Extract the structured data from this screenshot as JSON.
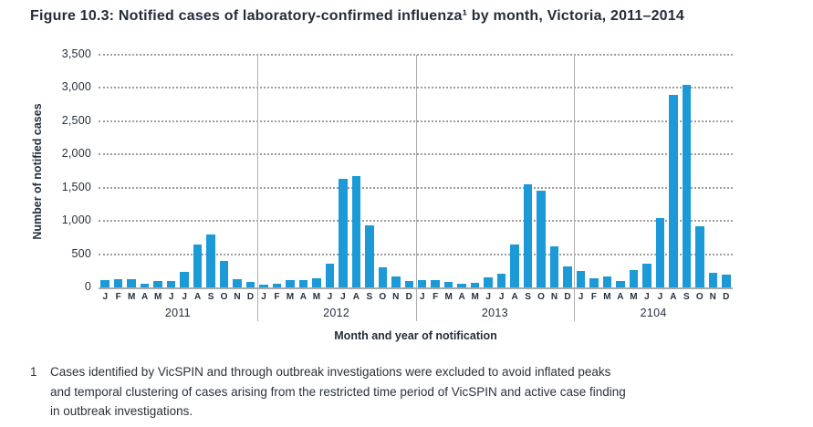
{
  "title": "Figure 10.3: Notified cases of laboratory-confirmed influenza¹ by month, Victoria, 2011–2014",
  "colors": {
    "bar": "#1b9ad7",
    "title_text": "#232e3c",
    "gridline": "#9d9d9d",
    "axis_line": "#a9a9a9"
  },
  "chart_data": {
    "type": "bar",
    "title": "Notified cases of laboratory-confirmed influenza by month, Victoria, 2011-2014",
    "xlabel": "Month and year of notification",
    "ylabel": "Number of notified cases",
    "ylim": [
      0,
      3500
    ],
    "ytick_interval": 500,
    "ytick_labels": [
      "0",
      "500",
      "1,000",
      "1,500",
      "2,000",
      "2,500",
      "3,000",
      "3,500"
    ],
    "grid": "dotted-horizontal",
    "legend": "none",
    "month_labels": [
      "J",
      "F",
      "M",
      "A",
      "M",
      "J",
      "J",
      "A",
      "S",
      "O",
      "N",
      "D"
    ],
    "years": [
      "2011",
      "2012",
      "2013",
      "2104"
    ],
    "series": [
      {
        "name": "Notified cases",
        "data": [
          {
            "year": "2011",
            "values": [
              115,
              130,
              130,
              60,
              90,
              100,
              240,
              640,
              800,
              400,
              125,
              80
            ]
          },
          {
            "year": "2012",
            "values": [
              40,
              55,
              110,
              110,
              140,
              360,
              1640,
              1680,
              930,
              305,
              160,
              90
            ]
          },
          {
            "year": "2013",
            "values": [
              115,
              110,
              85,
              60,
              75,
              145,
              205,
              650,
              1550,
              1450,
              620,
              310
            ]
          },
          {
            "year": "2104",
            "values": [
              250,
              135,
              165,
              100,
              255,
              360,
              1050,
              2900,
              3050,
              920,
              220,
              195
            ]
          }
        ]
      }
    ]
  },
  "footnote": {
    "marker": "1",
    "lines": [
      "Cases identified by VicSPIN and through outbreak investigations were excluded to avoid inflated peaks",
      "and temporal clustering of cases arising from the restricted time period of VicSPIN and active case finding",
      "in outbreak investigations."
    ]
  }
}
